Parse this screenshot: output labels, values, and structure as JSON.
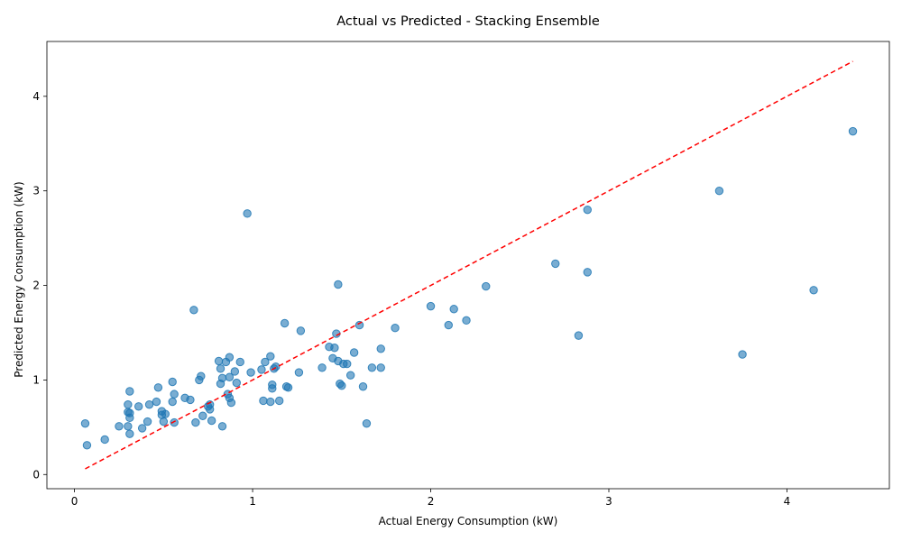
{
  "chart_data": {
    "type": "scatter",
    "title": "Actual vs Predicted - Stacking Ensemble",
    "xlabel": "Actual Energy Consumption (kW)",
    "ylabel": "Predicted Energy Consumption (kW)",
    "xlim": [
      -0.155,
      4.575
    ],
    "ylim": [
      -0.15,
      4.58
    ],
    "xticks": [
      0,
      1,
      2,
      3,
      4
    ],
    "yticks": [
      0,
      1,
      2,
      3,
      4
    ],
    "grid": false,
    "colors": {
      "points": "#1f77b4",
      "reference": "#ff0000"
    },
    "reference_line": {
      "label": "",
      "style": "dashed",
      "from": [
        0.06,
        0.06
      ],
      "to": [
        4.37,
        4.37
      ]
    },
    "series": [
      {
        "points": [
          [
            0.06,
            0.54
          ],
          [
            0.07,
            0.31
          ],
          [
            0.17,
            0.37
          ],
          [
            0.25,
            0.51
          ],
          [
            0.3,
            0.51
          ],
          [
            0.31,
            0.43
          ],
          [
            0.3,
            0.66
          ],
          [
            0.3,
            0.74
          ],
          [
            0.31,
            0.6
          ],
          [
            0.31,
            0.88
          ],
          [
            0.31,
            0.65
          ],
          [
            0.36,
            0.72
          ],
          [
            0.38,
            0.49
          ],
          [
            0.41,
            0.56
          ],
          [
            0.42,
            0.74
          ],
          [
            0.46,
            0.77
          ],
          [
            0.47,
            0.92
          ],
          [
            0.49,
            0.67
          ],
          [
            0.49,
            0.63
          ],
          [
            0.5,
            0.56
          ],
          [
            0.51,
            0.64
          ],
          [
            0.55,
            0.98
          ],
          [
            0.55,
            0.77
          ],
          [
            0.56,
            0.85
          ],
          [
            0.56,
            0.55
          ],
          [
            0.62,
            0.81
          ],
          [
            0.65,
            0.79
          ],
          [
            0.67,
            1.74
          ],
          [
            0.68,
            0.55
          ],
          [
            0.7,
            1.0
          ],
          [
            0.71,
            1.04
          ],
          [
            0.72,
            0.62
          ],
          [
            0.75,
            0.72
          ],
          [
            0.76,
            0.69
          ],
          [
            0.76,
            0.74
          ],
          [
            0.77,
            0.57
          ],
          [
            0.81,
            1.2
          ],
          [
            0.82,
            0.96
          ],
          [
            0.82,
            1.12
          ],
          [
            0.83,
            0.51
          ],
          [
            0.83,
            1.02
          ],
          [
            0.85,
            1.19
          ],
          [
            0.86,
            0.85
          ],
          [
            0.87,
            0.81
          ],
          [
            0.88,
            0.76
          ],
          [
            0.87,
            1.24
          ],
          [
            0.87,
            1.03
          ],
          [
            0.9,
            1.09
          ],
          [
            0.91,
            0.97
          ],
          [
            0.93,
            1.19
          ],
          [
            0.97,
            2.76
          ],
          [
            0.99,
            1.08
          ],
          [
            1.05,
            1.11
          ],
          [
            1.06,
            0.78
          ],
          [
            1.07,
            1.19
          ],
          [
            1.1,
            1.25
          ],
          [
            1.1,
            0.77
          ],
          [
            1.11,
            0.95
          ],
          [
            1.11,
            0.91
          ],
          [
            1.12,
            1.12
          ],
          [
            1.13,
            1.14
          ],
          [
            1.15,
            0.78
          ],
          [
            1.18,
            1.6
          ],
          [
            1.19,
            0.93
          ],
          [
            1.2,
            0.92
          ],
          [
            1.26,
            1.08
          ],
          [
            1.27,
            1.52
          ],
          [
            1.39,
            1.13
          ],
          [
            1.43,
            1.35
          ],
          [
            1.45,
            1.23
          ],
          [
            1.46,
            1.34
          ],
          [
            1.47,
            1.49
          ],
          [
            1.48,
            2.01
          ],
          [
            1.48,
            1.2
          ],
          [
            1.49,
            0.96
          ],
          [
            1.5,
            0.94
          ],
          [
            1.51,
            1.17
          ],
          [
            1.53,
            1.17
          ],
          [
            1.55,
            1.05
          ],
          [
            1.57,
            1.29
          ],
          [
            1.6,
            1.58
          ],
          [
            1.62,
            0.93
          ],
          [
            1.64,
            0.54
          ],
          [
            1.67,
            1.13
          ],
          [
            1.72,
            1.13
          ],
          [
            1.72,
            1.33
          ],
          [
            1.8,
            1.55
          ],
          [
            2.0,
            1.78
          ],
          [
            2.1,
            1.58
          ],
          [
            2.13,
            1.75
          ],
          [
            2.2,
            1.63
          ],
          [
            2.31,
            1.99
          ],
          [
            2.7,
            2.23
          ],
          [
            2.83,
            1.47
          ],
          [
            2.88,
            2.8
          ],
          [
            2.88,
            2.14
          ],
          [
            3.62,
            3.0
          ],
          [
            3.75,
            1.27
          ],
          [
            4.15,
            1.95
          ],
          [
            4.37,
            3.63
          ]
        ]
      }
    ]
  }
}
